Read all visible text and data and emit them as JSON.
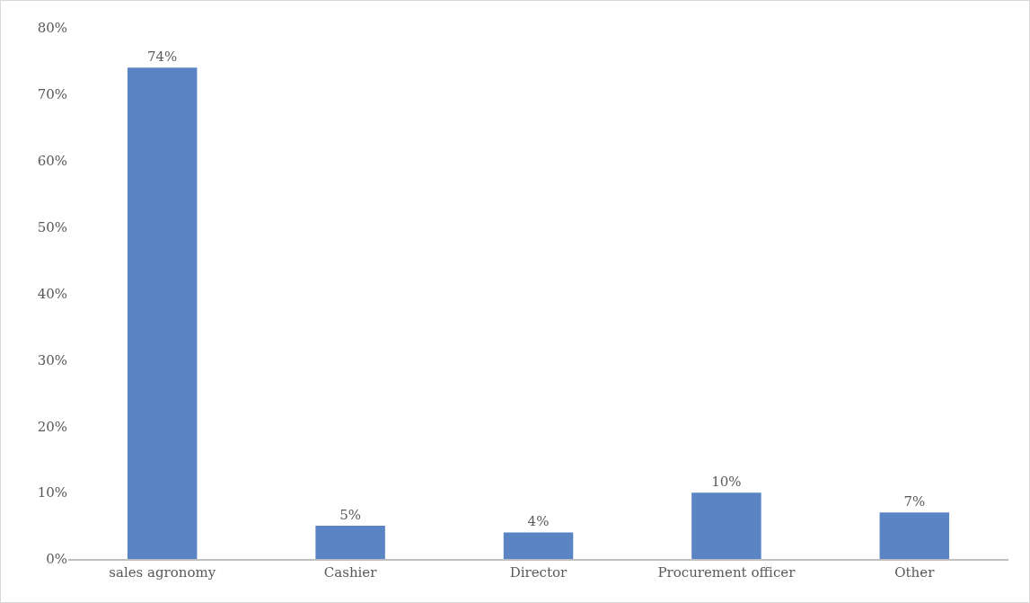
{
  "chart_data": {
    "type": "bar",
    "categories": [
      "sales agronomy",
      "Cashier",
      "Director",
      "Procurement officer",
      "Other"
    ],
    "values": [
      74,
      5,
      4,
      10,
      7
    ],
    "value_labels": [
      "74%",
      "5%",
      "4%",
      "10%",
      "7%"
    ],
    "color": "#5b84c4",
    "ylim": [
      0,
      80
    ],
    "yticks": [
      {
        "value": 0,
        "label": "0%"
      },
      {
        "value": 10,
        "label": "10%"
      },
      {
        "value": 20,
        "label": "20%"
      },
      {
        "value": 30,
        "label": "30%"
      },
      {
        "value": 40,
        "label": "40%"
      },
      {
        "value": 50,
        "label": "50%"
      },
      {
        "value": 60,
        "label": "60%"
      },
      {
        "value": 70,
        "label": "70%"
      },
      {
        "value": 80,
        "label": "80%"
      }
    ],
    "grid": false
  }
}
